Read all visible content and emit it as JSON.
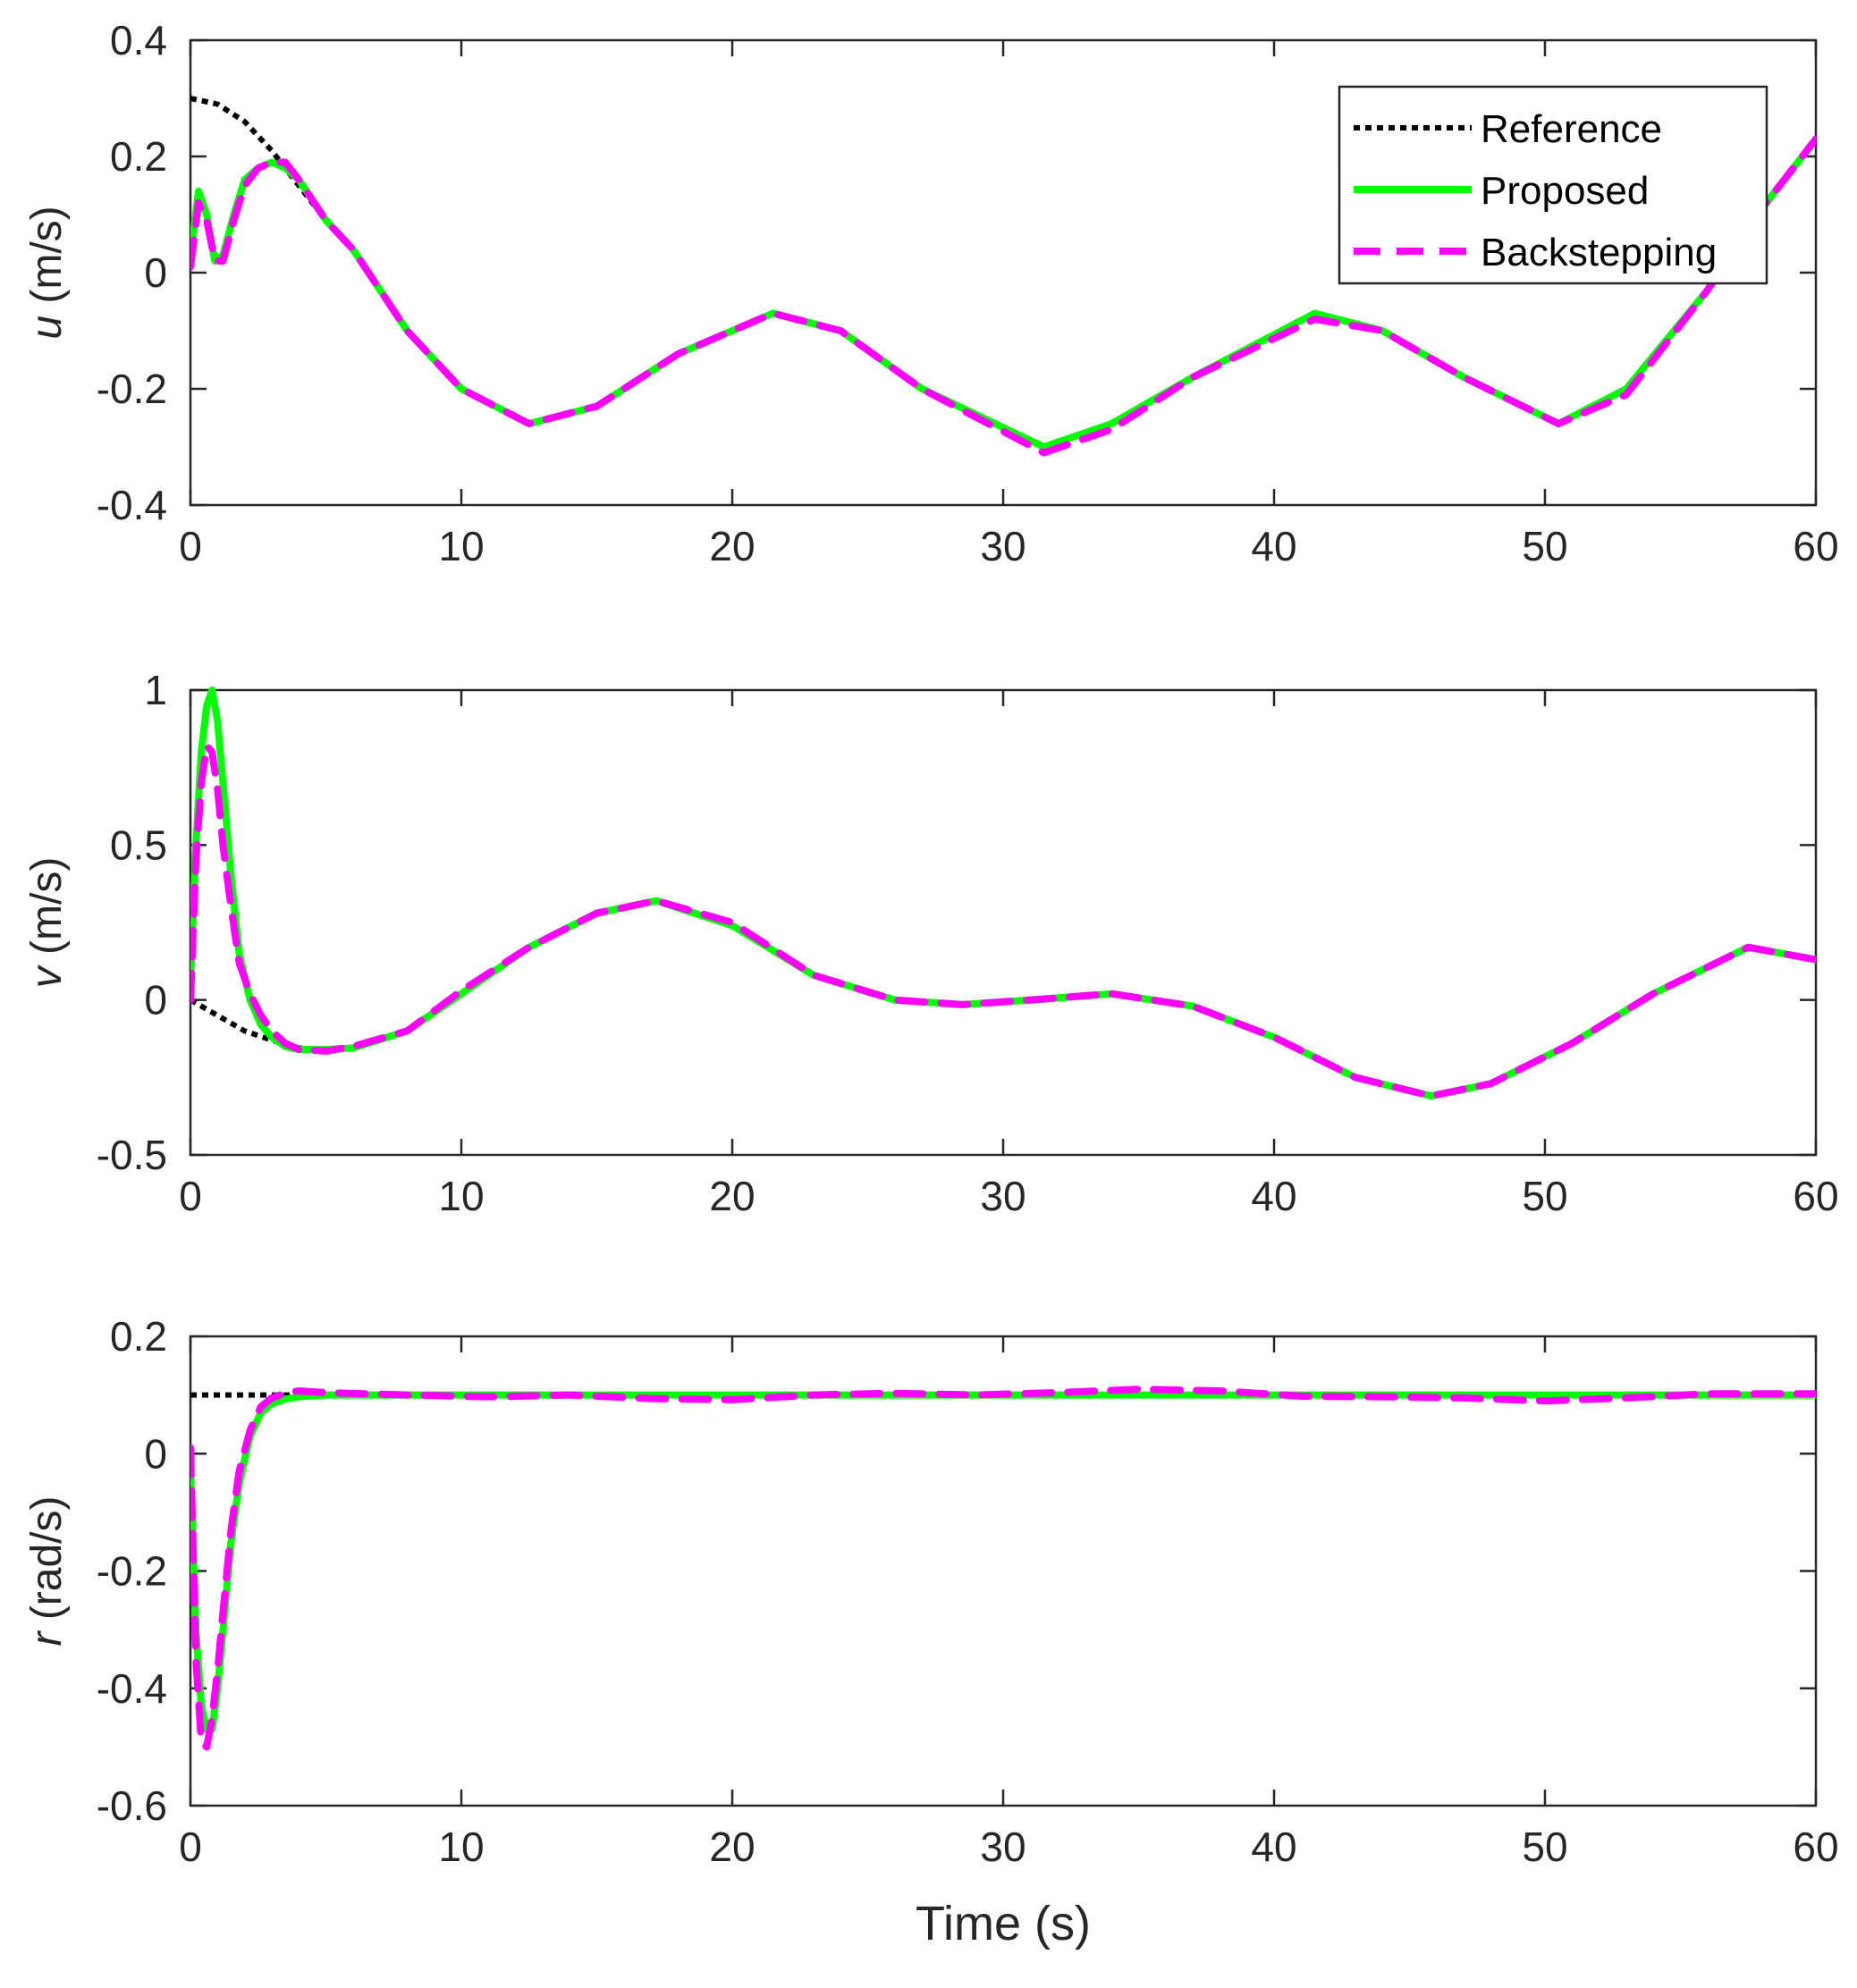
{
  "chart_data": [
    {
      "type": "line",
      "ylabel": {
        "italic": "u",
        "rest": " (m/s)"
      },
      "xlabel": "",
      "xlim": [
        0,
        60
      ],
      "ylim": [
        -0.4,
        0.4
      ],
      "xticks": [
        "0",
        "10",
        "20",
        "30",
        "40",
        "50",
        "60"
      ],
      "yticks": [
        "-0.4",
        "-0.2",
        "0",
        "0.2",
        "0.4"
      ],
      "grid": false,
      "legend": {
        "placement": "top-right",
        "entries": [
          "Reference",
          "Proposed",
          "Backstepping"
        ]
      },
      "series": [
        {
          "name": "Reference",
          "color": "#000000",
          "style": "dotted",
          "x": [
            0,
            1,
            2,
            3,
            4,
            5,
            6,
            8,
            10,
            12.5,
            15,
            18,
            21.5,
            24,
            27,
            31.5,
            34,
            37,
            41.5,
            44,
            47,
            50.5,
            53,
            56,
            58,
            60
          ],
          "y": [
            0.3,
            0.29,
            0.26,
            0.21,
            0.15,
            0.09,
            0.04,
            -0.1,
            -0.2,
            -0.26,
            -0.23,
            -0.14,
            -0.07,
            -0.1,
            -0.2,
            -0.3,
            -0.26,
            -0.18,
            -0.07,
            -0.1,
            -0.18,
            -0.26,
            -0.2,
            -0.03,
            0.11,
            0.23
          ]
        },
        {
          "name": "Proposed",
          "color": "#00ff00",
          "style": "solid",
          "x": [
            0,
            0.3,
            0.6,
            0.9,
            1.2,
            1.6,
            2,
            2.5,
            3,
            3.5,
            4,
            5,
            6,
            8,
            10,
            12.5,
            15,
            18,
            21.5,
            24,
            27,
            31.5,
            34,
            37,
            41.5,
            44,
            47,
            50.5,
            53,
            56,
            58,
            60
          ],
          "y": [
            0.03,
            0.14,
            0.1,
            0.02,
            0.03,
            0.1,
            0.16,
            0.18,
            0.19,
            0.18,
            0.16,
            0.09,
            0.04,
            -0.1,
            -0.2,
            -0.26,
            -0.23,
            -0.14,
            -0.07,
            -0.1,
            -0.2,
            -0.3,
            -0.26,
            -0.18,
            -0.07,
            -0.1,
            -0.18,
            -0.26,
            -0.2,
            -0.03,
            0.11,
            0.23
          ]
        },
        {
          "name": "Backstepping",
          "color": "#ff00ff",
          "style": "dashed",
          "x": [
            0,
            0.3,
            0.6,
            0.9,
            1.2,
            1.6,
            2,
            2.5,
            3,
            3.5,
            4,
            5,
            6,
            8,
            10,
            12.5,
            15,
            18,
            21.5,
            24,
            27,
            31.5,
            34,
            37,
            41.5,
            44,
            47,
            50.5,
            53,
            56,
            58,
            60
          ],
          "y": [
            0.01,
            0.12,
            0.09,
            0.02,
            0.02,
            0.09,
            0.15,
            0.18,
            0.19,
            0.19,
            0.16,
            0.09,
            0.04,
            -0.1,
            -0.2,
            -0.26,
            -0.23,
            -0.14,
            -0.07,
            -0.1,
            -0.2,
            -0.31,
            -0.27,
            -0.18,
            -0.08,
            -0.1,
            -0.18,
            -0.26,
            -0.21,
            -0.03,
            0.11,
            0.23
          ]
        }
      ]
    },
    {
      "type": "line",
      "ylabel": {
        "italic": "v",
        "rest": " (m/s)"
      },
      "xlabel": "",
      "xlim": [
        0,
        60
      ],
      "ylim": [
        -0.5,
        1
      ],
      "xticks": [
        "0",
        "10",
        "20",
        "30",
        "40",
        "50",
        "60"
      ],
      "yticks": [
        "-0.5",
        "0",
        "0.5",
        "1"
      ],
      "grid": false,
      "series": [
        {
          "name": "Reference",
          "color": "#000000",
          "style": "dotted",
          "x": [
            0,
            1,
            2,
            3,
            4,
            5,
            6,
            8,
            10,
            12.5,
            15,
            17.2,
            20,
            23,
            26,
            28.5,
            31,
            34,
            37,
            40,
            43,
            45.8,
            48,
            51,
            54,
            57.5,
            60
          ],
          "y": [
            0,
            -0.05,
            -0.1,
            -0.13,
            -0.155,
            -0.16,
            -0.155,
            -0.1,
            0.02,
            0.17,
            0.28,
            0.32,
            0.24,
            0.08,
            0.0,
            -0.015,
            0.0,
            0.02,
            -0.02,
            -0.12,
            -0.25,
            -0.31,
            -0.27,
            -0.14,
            0.02,
            0.17,
            0.13
          ]
        },
        {
          "name": "Proposed",
          "color": "#00ff00",
          "style": "solid",
          "x": [
            0,
            0.2,
            0.4,
            0.6,
            0.8,
            1,
            1.2,
            1.5,
            1.8,
            2.2,
            2.6,
            3,
            3.5,
            4,
            5,
            6,
            8,
            10,
            12.5,
            15,
            17.2,
            20,
            23,
            26,
            28.5,
            31,
            34,
            37,
            40,
            43,
            45.8,
            48,
            51,
            54,
            57.5,
            60
          ],
          "y": [
            0.05,
            0.5,
            0.8,
            0.95,
            1.0,
            0.9,
            0.7,
            0.4,
            0.15,
            0.0,
            -0.08,
            -0.12,
            -0.15,
            -0.16,
            -0.16,
            -0.155,
            -0.1,
            0.02,
            0.17,
            0.28,
            0.32,
            0.24,
            0.08,
            0.0,
            -0.015,
            0.0,
            0.02,
            -0.02,
            -0.12,
            -0.25,
            -0.31,
            -0.27,
            -0.14,
            0.02,
            0.17,
            0.13
          ]
        },
        {
          "name": "Backstepping",
          "color": "#ff00ff",
          "style": "dashed",
          "x": [
            0,
            0.2,
            0.4,
            0.6,
            0.8,
            1,
            1.2,
            1.5,
            1.8,
            2.2,
            2.6,
            3,
            3.5,
            4,
            5,
            6,
            8,
            10,
            12.5,
            15,
            17.2,
            20,
            23,
            26,
            28.5,
            31,
            34,
            37,
            40,
            43,
            45.8,
            48,
            51,
            54,
            57.5,
            60
          ],
          "y": [
            0.0,
            0.45,
            0.7,
            0.82,
            0.8,
            0.68,
            0.5,
            0.3,
            0.12,
            0.02,
            -0.05,
            -0.1,
            -0.14,
            -0.16,
            -0.165,
            -0.15,
            -0.1,
            0.03,
            0.17,
            0.28,
            0.32,
            0.25,
            0.08,
            0.0,
            -0.015,
            0.0,
            0.02,
            -0.02,
            -0.12,
            -0.25,
            -0.31,
            -0.27,
            -0.14,
            0.02,
            0.17,
            0.13
          ]
        }
      ]
    },
    {
      "type": "line",
      "ylabel": {
        "italic": "r",
        "rest": " (rad/s)"
      },
      "xlabel": "Time (s)",
      "xlim": [
        0,
        60
      ],
      "ylim": [
        -0.6,
        0.2
      ],
      "xticks": [
        "0",
        "10",
        "20",
        "30",
        "40",
        "50",
        "60"
      ],
      "yticks": [
        "-0.6",
        "-0.4",
        "-0.2",
        "0",
        "0.2"
      ],
      "grid": false,
      "series": [
        {
          "name": "Reference",
          "color": "#000000",
          "style": "dotted",
          "x": [
            0,
            60
          ],
          "y": [
            0.1,
            0.1
          ]
        },
        {
          "name": "Proposed",
          "color": "#00ff00",
          "style": "solid",
          "x": [
            0,
            0.2,
            0.4,
            0.6,
            0.8,
            1.0,
            1.2,
            1.5,
            1.8,
            2.2,
            2.6,
            3,
            3.5,
            4,
            5,
            6,
            10,
            20,
            30,
            40,
            50,
            60
          ],
          "y": [
            -0.02,
            -0.3,
            -0.43,
            -0.47,
            -0.47,
            -0.4,
            -0.3,
            -0.15,
            -0.05,
            0.03,
            0.07,
            0.085,
            0.093,
            0.097,
            0.1,
            0.1,
            0.1,
            0.1,
            0.1,
            0.1,
            0.1,
            0.1
          ]
        },
        {
          "name": "Backstepping",
          "color": "#ff00ff",
          "style": "dashed",
          "x": [
            0,
            0.2,
            0.4,
            0.6,
            0.8,
            1.0,
            1.2,
            1.5,
            1.8,
            2.2,
            2.6,
            3,
            3.5,
            4,
            5,
            8,
            11,
            14,
            17,
            20,
            23,
            26,
            29,
            32,
            35,
            38,
            41,
            44,
            47,
            50,
            53,
            56,
            60
          ],
          "y": [
            0.01,
            -0.35,
            -0.49,
            -0.5,
            -0.45,
            -0.37,
            -0.27,
            -0.13,
            -0.03,
            0.04,
            0.08,
            0.095,
            0.103,
            0.107,
            0.104,
            0.1,
            0.097,
            0.1,
            0.094,
            0.092,
            0.1,
            0.103,
            0.1,
            0.104,
            0.11,
            0.107,
            0.098,
            0.097,
            0.095,
            0.09,
            0.095,
            0.102,
            0.102
          ]
        }
      ]
    }
  ]
}
